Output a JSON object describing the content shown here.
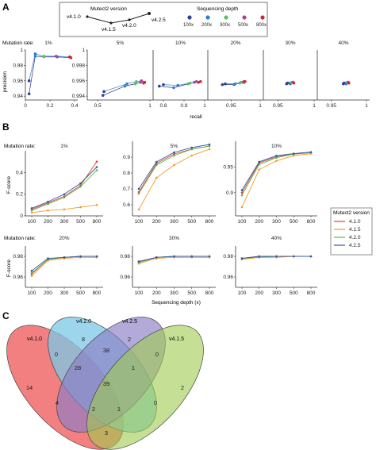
{
  "colors": {
    "v4.1.0": "#e8393c",
    "v4.1.5": "#f59a23",
    "v4.2.0": "#59b947",
    "v4.2.5": "#3753a3",
    "depth_100x": "#2f3f9a",
    "depth_200x": "#2f7fd1",
    "depth_300x": "#5cc06a",
    "depth_500x": "#a9459a",
    "depth_800x": "#d2262e",
    "venn_v410": "#f06a6a",
    "venn_v420": "#7cc8e6",
    "venn_v425": "#8a7cc6",
    "venn_v415": "#9fcb4f"
  },
  "panelA": {
    "label": "A",
    "legend_version_title": "Mutect2 version",
    "legend_depth_title": "Sequencing depth",
    "version_labels": [
      "v4.1.0",
      "v4.1.5",
      "v4.2.0",
      "v4.2.5"
    ],
    "depth_labels": [
      "100x",
      "200x",
      "300x",
      "500x",
      "800x"
    ],
    "mutation_rate_prefix": "Mutation rate:",
    "ylabel": "precision",
    "xlabel": "recall",
    "first_yticks": [
      "0.94",
      "0.96",
      "0.98",
      "1"
    ],
    "first_xticks": [
      "0",
      "0.2",
      "0.4"
    ],
    "rest_yticks": [
      "0.994",
      "0.996",
      "0.998",
      "1"
    ]
  },
  "chart_data": [
    {
      "panel": "A",
      "type": "scatter",
      "ylabel": "precision",
      "xlabel": "recall",
      "facets": [
        {
          "rate": "1%",
          "xlim": [
            0,
            0.4
          ],
          "xticks": [
            "0",
            "0.2",
            "0.4"
          ],
          "ylim": [
            0.935,
            1.0
          ],
          "points": [
            {
              "version": "v4.1.0",
              "recall": [
                0.03,
                0.08,
                0.15,
                0.26,
                0.37
              ],
              "precision": [
                0.943,
                0.992,
                0.991,
                0.991,
                0.99
              ]
            },
            {
              "version": "v4.2.0",
              "recall": [
                0.03,
                0.08,
                0.15,
                0.25,
                0.36
              ],
              "precision": [
                0.96,
                0.995,
                0.992,
                0.992,
                0.991
              ]
            }
          ]
        },
        {
          "rate": "5%",
          "xlim": [
            0.4,
            1.0
          ],
          "xticks": [
            "0.5",
            "1"
          ],
          "ylim": [
            0.9935,
            1.0
          ],
          "points": [
            {
              "version": "v4.1.0",
              "recall": [
                0.55,
                0.76,
                0.86,
                0.91,
                0.94
              ],
              "precision": [
                0.9941,
                0.9953,
                0.9956,
                0.9958,
                0.9957
              ]
            },
            {
              "version": "v4.2.0",
              "recall": [
                0.56,
                0.78,
                0.87,
                0.92,
                0.95
              ],
              "precision": [
                0.9946,
                0.9956,
                0.9959,
                0.996,
                0.9958
              ]
            }
          ]
        },
        {
          "rate": "10%",
          "xlim": [
            0.75,
            1.0
          ],
          "xticks": [
            "0.8",
            "0.9",
            "1"
          ],
          "ylim": [
            0.9935,
            1.0
          ],
          "points": [
            {
              "version": "v4.1.0",
              "recall": [
                0.78,
                0.85,
                0.92,
                0.95,
                0.97
              ],
              "precision": [
                0.9953,
                0.9951,
                0.9956,
                0.9958,
                0.9958
              ]
            },
            {
              "version": "v4.2.0",
              "recall": [
                0.8,
                0.87,
                0.93,
                0.96,
                0.98
              ],
              "precision": [
                0.9955,
                0.9954,
                0.9957,
                0.9959,
                0.9959
              ]
            }
          ]
        },
        {
          "rate": "20%",
          "xlim": [
            0.91,
            1.0
          ],
          "xticks": [
            "0.95",
            "1"
          ],
          "ylim": [
            0.9935,
            1.0
          ],
          "points": [
            {
              "version": "v4.1.0",
              "recall": [
                0.935,
                0.955,
                0.965,
                0.97,
                0.972
              ],
              "precision": [
                0.9955,
                0.9955,
                0.9957,
                0.9958,
                0.9958
              ]
            },
            {
              "version": "v4.2.0",
              "recall": [
                0.94,
                0.957,
                0.967,
                0.972,
                0.974
              ],
              "precision": [
                0.9956,
                0.9956,
                0.9958,
                0.9959,
                0.9959
              ]
            }
          ]
        },
        {
          "rate": "30%",
          "xlim": [
            0.93,
            1.0
          ],
          "xticks": [
            "0.95",
            "1"
          ],
          "ylim": [
            0.9935,
            1.0
          ],
          "points": [
            {
              "version": "v4.1.0",
              "recall": [
                0.962,
                0.966,
                0.968,
                0.97,
                0.971
              ],
              "precision": [
                0.9956,
                0.9957,
                0.9957,
                0.9958,
                0.9958
              ]
            },
            {
              "version": "v4.2.0",
              "recall": [
                0.963,
                0.967,
                0.969,
                0.971,
                0.972
              ],
              "precision": [
                0.9957,
                0.9956,
                0.9958,
                0.9958,
                0.9957
              ]
            }
          ]
        },
        {
          "rate": "40%",
          "xlim": [
            0.93,
            1.0
          ],
          "xticks": [
            "0.95",
            "1"
          ],
          "ylim": [
            0.9935,
            1.0
          ],
          "points": [
            {
              "version": "v4.1.0",
              "recall": [
                0.967,
                0.97,
                0.972,
                0.973,
                0.974
              ],
              "precision": [
                0.9956,
                0.9957,
                0.9957,
                0.9958,
                0.9958
              ]
            },
            {
              "version": "v4.2.0",
              "recall": [
                0.968,
                0.971,
                0.973,
                0.974,
                0.975
              ],
              "precision": [
                0.9957,
                0.9956,
                0.9958,
                0.9958,
                0.9957
              ]
            }
          ]
        }
      ]
    },
    {
      "panel": "B",
      "type": "line",
      "xlabel": "Sequencing depth (x)",
      "ylabel": "F-score",
      "legend_title": "Mutect2 version",
      "legend_entries": [
        "4.1.0",
        "4.1.5",
        "4.2.0",
        "4.2.5"
      ],
      "categories": [
        "100",
        "200",
        "300",
        "500",
        "800"
      ],
      "facets": [
        {
          "rate": "1%",
          "ylim": [
            0,
            0.6
          ],
          "yticks": [
            0,
            0.2,
            0.4
          ],
          "series": [
            {
              "name": "4.1.0",
              "values": [
                0.06,
                0.12,
                0.18,
                0.28,
                0.5
              ]
            },
            {
              "name": "4.1.5",
              "values": [
                0.03,
                0.05,
                0.06,
                0.08,
                0.1
              ]
            },
            {
              "name": "4.2.0",
              "values": [
                0.05,
                0.11,
                0.17,
                0.27,
                0.42
              ]
            },
            {
              "name": "4.2.5",
              "values": [
                0.07,
                0.13,
                0.2,
                0.3,
                0.45
              ]
            }
          ]
        },
        {
          "rate": "5%",
          "ylim": [
            0.53,
            1.0
          ],
          "yticks": [
            0.6,
            0.7,
            0.8,
            0.9
          ],
          "series": [
            {
              "name": "4.1.0",
              "values": [
                0.68,
                0.86,
                0.92,
                0.95,
                0.97
              ]
            },
            {
              "name": "4.1.5",
              "values": [
                0.57,
                0.77,
                0.85,
                0.91,
                0.95
              ]
            },
            {
              "name": "4.2.0",
              "values": [
                0.67,
                0.85,
                0.91,
                0.95,
                0.97
              ]
            },
            {
              "name": "4.2.5",
              "values": [
                0.7,
                0.87,
                0.93,
                0.96,
                0.98
              ]
            }
          ]
        },
        {
          "rate": "10%",
          "ylim": [
            0.855,
            1.0
          ],
          "yticks": [
            0.9,
            0.95
          ],
          "series": [
            {
              "name": "4.1.0",
              "values": [
                0.9,
                0.958,
                0.97,
                0.975,
                0.978
              ]
            },
            {
              "name": "4.1.5",
              "values": [
                0.872,
                0.945,
                0.962,
                0.972,
                0.976
              ]
            },
            {
              "name": "4.2.0",
              "values": [
                0.895,
                0.955,
                0.968,
                0.975,
                0.978
              ]
            },
            {
              "name": "4.2.5",
              "values": [
                0.905,
                0.96,
                0.972,
                0.976,
                0.979
              ]
            }
          ]
        },
        {
          "rate": "20%",
          "ylim": [
            0.95,
            0.99
          ],
          "yticks": [
            0.96,
            0.98
          ],
          "series": [
            {
              "name": "4.1.0",
              "values": [
                0.963,
                0.977,
                0.979,
                0.98,
                0.98
              ]
            },
            {
              "name": "4.1.5",
              "values": [
                0.961,
                0.976,
                0.978,
                0.979,
                0.979
              ]
            },
            {
              "name": "4.2.0",
              "values": [
                0.964,
                0.977,
                0.979,
                0.98,
                0.98
              ]
            },
            {
              "name": "4.2.5",
              "values": [
                0.966,
                0.978,
                0.979,
                0.98,
                0.98
              ]
            }
          ]
        },
        {
          "rate": "30%",
          "ylim": [
            0.95,
            0.99
          ],
          "yticks": [
            0.96,
            0.98
          ],
          "series": [
            {
              "name": "4.1.0",
              "values": [
                0.975,
                0.979,
                0.98,
                0.98,
                0.98
              ]
            },
            {
              "name": "4.1.5",
              "values": [
                0.973,
                0.978,
                0.979,
                0.979,
                0.979
              ]
            },
            {
              "name": "4.2.0",
              "values": [
                0.974,
                0.979,
                0.98,
                0.98,
                0.98
              ]
            },
            {
              "name": "4.2.5",
              "values": [
                0.975,
                0.979,
                0.98,
                0.98,
                0.98
              ]
            }
          ]
        },
        {
          "rate": "40%",
          "ylim": [
            0.95,
            0.99
          ],
          "yticks": [
            0.96,
            0.98
          ],
          "series": [
            {
              "name": "4.1.0",
              "values": [
                0.978,
                0.98,
                0.98,
                0.98,
                0.98
              ]
            },
            {
              "name": "4.1.5",
              "values": [
                0.977,
                0.979,
                0.979,
                0.98,
                0.98
              ]
            },
            {
              "name": "4.2.0",
              "values": [
                0.978,
                0.979,
                0.98,
                0.98,
                0.98
              ]
            },
            {
              "name": "4.2.5",
              "values": [
                0.978,
                0.98,
                0.98,
                0.98,
                0.98
              ]
            }
          ]
        }
      ]
    },
    {
      "panel": "C",
      "type": "venn",
      "sets": [
        "v4.1.0",
        "v4.2.0",
        "v4.2.5",
        "v4.1.5"
      ],
      "regions": [
        {
          "sets": [
            "v4.1.0"
          ],
          "count": 14
        },
        {
          "sets": [
            "v4.2.0"
          ],
          "count": 8
        },
        {
          "sets": [
            "v4.2.5"
          ],
          "count": 2
        },
        {
          "sets": [
            "v4.1.5"
          ],
          "count": 2
        },
        {
          "sets": [
            "v4.1.0",
            "v4.2.0"
          ],
          "count": 0
        },
        {
          "sets": [
            "v4.2.0",
            "v4.2.5"
          ],
          "count": 38
        },
        {
          "sets": [
            "v4.2.5",
            "v4.1.5"
          ],
          "count": 0
        },
        {
          "sets": [
            "v4.1.0",
            "v4.2.0",
            "v4.2.5"
          ],
          "count": 28
        },
        {
          "sets": [
            "v4.2.0",
            "v4.2.5",
            "v4.1.5"
          ],
          "count": 1
        },
        {
          "sets": [
            "v4.1.0",
            "v4.2.5"
          ],
          "count": 4
        },
        {
          "sets": [
            "v4.2.0",
            "v4.1.5"
          ],
          "count": 0
        },
        {
          "sets": [
            "v4.1.0",
            "v4.2.0",
            "v4.2.5",
            "v4.1.5"
          ],
          "count": 39
        },
        {
          "sets": [
            "v4.1.0",
            "v4.2.5",
            "v4.1.5"
          ],
          "count": 2
        },
        {
          "sets": [
            "v4.2.0",
            "v4.1.0",
            "v4.1.5"
          ],
          "count": 1
        },
        {
          "sets": [
            "v4.1.0",
            "v4.1.5"
          ],
          "count": 3
        }
      ]
    }
  ],
  "panelB": {
    "label": "B",
    "mutation_rate_prefix": "Mutation rate:",
    "ylabel": "F-score",
    "xlabel": "Sequencing depth (x)",
    "legend_title": "Mutect2 version"
  },
  "panelC": {
    "label": "C",
    "set_labels": [
      "v4.1.0",
      "v4.2.0",
      "v4.2.5",
      "v4.1.5"
    ]
  }
}
